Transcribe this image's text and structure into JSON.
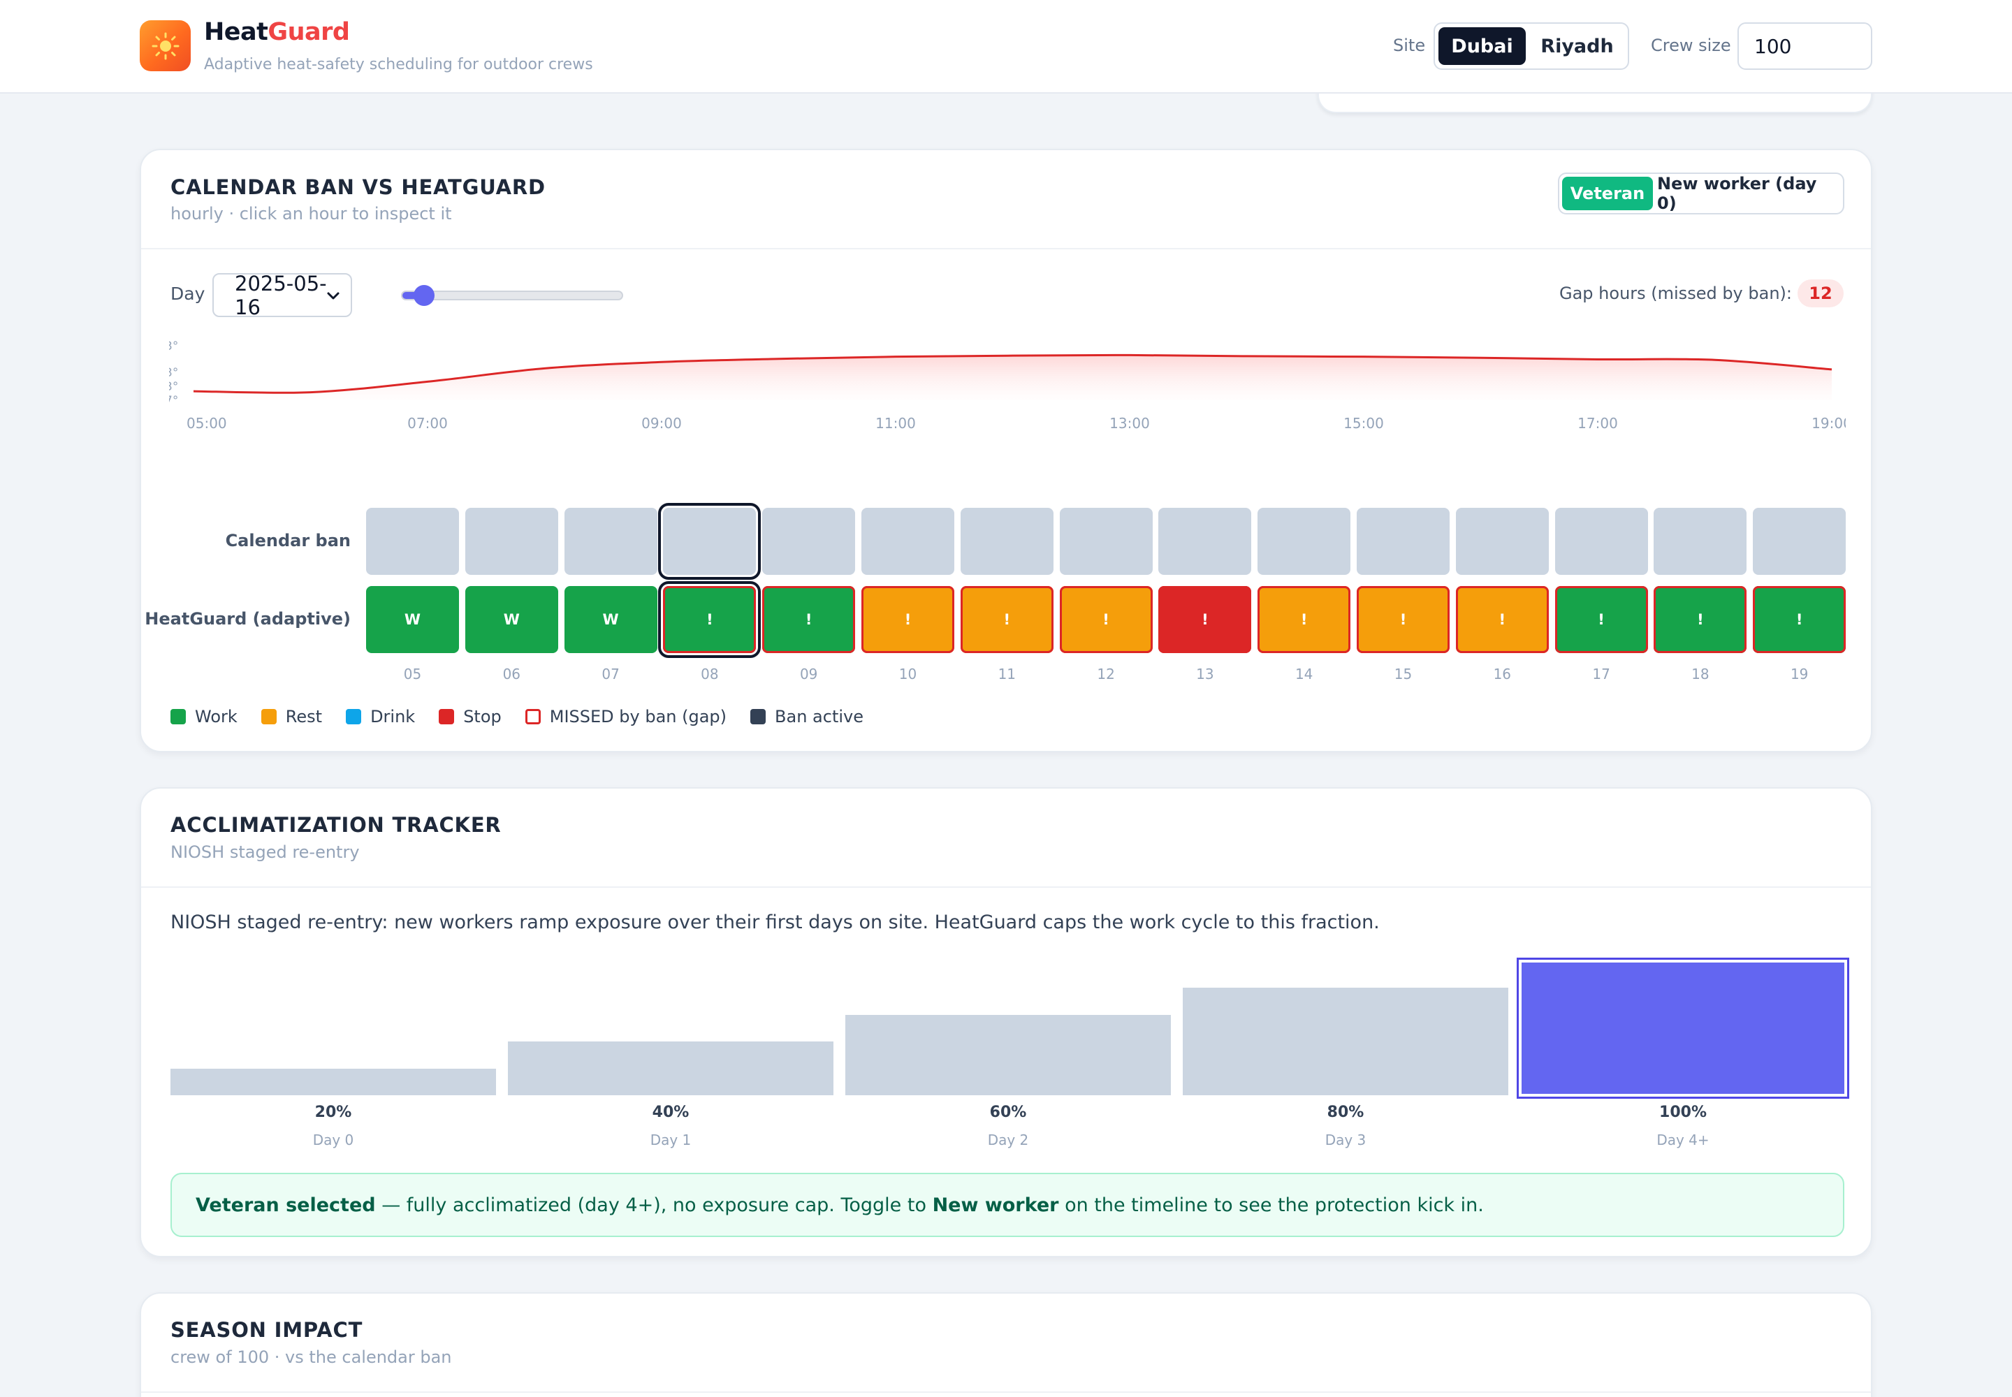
{
  "header": {
    "brand_part1": "Heat",
    "brand_part2": "Guard",
    "tagline": "Adaptive heat-safety scheduling for outdoor crews",
    "site_label": "Site",
    "sites": [
      "Dubai",
      "Riyadh"
    ],
    "site_selected": "Dubai",
    "crew_label": "Crew size",
    "crew_value": "100",
    "logo_icon": "sun-icon",
    "accent": "#ef4444"
  },
  "timeline": {
    "title": "CALENDAR BAN VS HEATGUARD",
    "subtitle": "hourly · click an hour to inspect it",
    "modes": [
      "Veteran",
      "New worker (day 0)"
    ],
    "mode_selected": "Veteran",
    "day_label": "Day",
    "day_value": "2025-05-16",
    "day_slider_fraction": 0.08,
    "gap_label": "Gap hours (missed by ban):",
    "gap_value": "12",
    "row_ban_label": "Calendar ban",
    "row_hg_label": "HeatGuard (adaptive)",
    "hours": [
      "05",
      "06",
      "07",
      "08",
      "09",
      "10",
      "11",
      "12",
      "13",
      "14",
      "15",
      "16",
      "17",
      "18",
      "19"
    ],
    "ban_active": [
      false,
      false,
      false,
      false,
      false,
      false,
      false,
      false,
      false,
      false,
      false,
      false,
      false,
      false,
      false
    ],
    "heatguard": [
      {
        "status": "work",
        "mark": "W",
        "missed": false
      },
      {
        "status": "work",
        "mark": "W",
        "missed": false
      },
      {
        "status": "work",
        "mark": "W",
        "missed": false
      },
      {
        "status": "work",
        "mark": "!",
        "missed": true
      },
      {
        "status": "work",
        "mark": "!",
        "missed": true
      },
      {
        "status": "rest",
        "mark": "!",
        "missed": true
      },
      {
        "status": "rest",
        "mark": "!",
        "missed": true
      },
      {
        "status": "rest",
        "mark": "!",
        "missed": true
      },
      {
        "status": "stop",
        "mark": "!",
        "missed": true
      },
      {
        "status": "rest",
        "mark": "!",
        "missed": true
      },
      {
        "status": "rest",
        "mark": "!",
        "missed": true
      },
      {
        "status": "rest",
        "mark": "!",
        "missed": true
      },
      {
        "status": "work",
        "mark": "!",
        "missed": true
      },
      {
        "status": "work",
        "mark": "!",
        "missed": true
      },
      {
        "status": "work",
        "mark": "!",
        "missed": true
      }
    ],
    "selected_hour": "08",
    "legend": [
      {
        "label": "Work",
        "color": "#16a34a",
        "kind": "fill"
      },
      {
        "label": "Rest",
        "color": "#f59e0b",
        "kind": "fill"
      },
      {
        "label": "Drink",
        "color": "#0ea5e9",
        "kind": "fill"
      },
      {
        "label": "Stop",
        "color": "#dc2626",
        "kind": "fill"
      },
      {
        "label": "MISSED by ban (gap)",
        "color": "#dc2626",
        "kind": "outline"
      },
      {
        "label": "Ban active",
        "color": "#334155",
        "kind": "fill"
      }
    ],
    "colors": {
      "work": "#16a34a",
      "rest": "#f59e0b",
      "drink": "#0ea5e9",
      "stop": "#dc2626",
      "ban_idle": "#cbd5e1",
      "curve": "#dc2626"
    }
  },
  "chart_data": {
    "type": "area",
    "title": "",
    "xlabel": "",
    "ylabel": "",
    "x_ticks": [
      "05:00",
      "07:00",
      "09:00",
      "11:00",
      "13:00",
      "15:00",
      "17:00",
      "19:00"
    ],
    "y_ticks": [
      "3°",
      "3°",
      "3°",
      "7°"
    ],
    "x": [
      5,
      6,
      7,
      8,
      9,
      10,
      11,
      12,
      13,
      14,
      15,
      16,
      17,
      18,
      19
    ],
    "series": [
      {
        "values": [
          0.17,
          0.15,
          0.35,
          0.6,
          0.72,
          0.78,
          0.82,
          0.84,
          0.85,
          0.83,
          0.82,
          0.8,
          0.77,
          0.76,
          0.58
        ]
      }
    ],
    "ylim": [
      0,
      1
    ],
    "grid": false
  },
  "acclimatization": {
    "title": "ACCLIMATIZATION TRACKER",
    "subtitle": "NIOSH staged re-entry",
    "description": "NIOSH staged re-entry: new workers ramp exposure over their first days on site. HeatGuard caps the work cycle to this fraction.",
    "bars": [
      {
        "pct": "20%",
        "day": "Day 0",
        "value": 0.2
      },
      {
        "pct": "40%",
        "day": "Day 1",
        "value": 0.4
      },
      {
        "pct": "60%",
        "day": "Day 2",
        "value": 0.6
      },
      {
        "pct": "80%",
        "day": "Day 3",
        "value": 0.8
      },
      {
        "pct": "100%",
        "day": "Day 4+",
        "value": 1.0
      }
    ],
    "active_index": 4,
    "note_bold1": "Veteran selected",
    "note_mid": " — fully acclimatized (day 4+), no exposure cap. Toggle to ",
    "note_bold2": "New worker",
    "note_end": " on the timeline to see the protection kick in."
  },
  "season": {
    "title": "SEASON IMPACT",
    "subtitle": "crew of 100 · vs the calendar ban"
  }
}
